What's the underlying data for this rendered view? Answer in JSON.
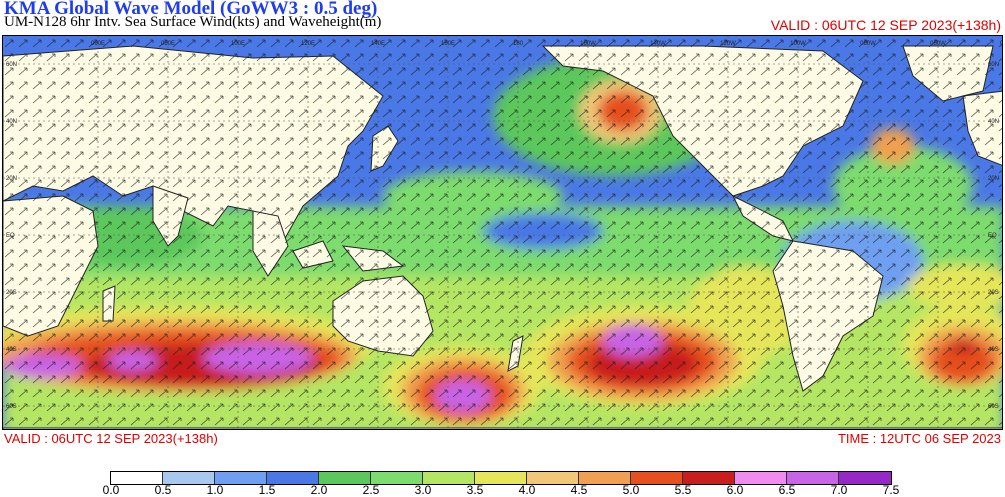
{
  "header": {
    "title": "KMA  Global Wave Model (GoWW3 : 0.5 deg)",
    "subtitle": "UM-N128  6hr Intv. Sea Surface Wind(kts) and Waveheight(m)",
    "valid_top": "VALID : 06UTC 12 SEP 2023(+138h)"
  },
  "footer": {
    "valid_bottom": "VALID : 06UTC 12 SEP 2023(+138h)",
    "time": "TIME : 12UTC 06 SEP 2023"
  },
  "map": {
    "land_color": "#fdfbe3",
    "lon_labels": [
      "060E",
      "080E",
      "100E",
      "120E",
      "140E",
      "160E",
      "180",
      "160W",
      "140W",
      "120W",
      "100W",
      "080W",
      "060W",
      "040W"
    ],
    "lat_labels": [
      "60N",
      "40N",
      "20N",
      "EQ",
      "20S",
      "40S",
      "60S"
    ]
  },
  "colorbar": {
    "labels": [
      "0.0",
      "0.5",
      "1.0",
      "1.5",
      "2.0",
      "2.5",
      "3.0",
      "3.5",
      "4.0",
      "4.5",
      "5.0",
      "5.5",
      "6.0",
      "6.5",
      "7.0",
      "7.5"
    ],
    "colors": [
      "#ffffff",
      "#a8c8f0",
      "#6e9ff0",
      "#4a78e6",
      "#5cc85c",
      "#7ddc6e",
      "#b4e664",
      "#e6e65a",
      "#f0c878",
      "#f0a050",
      "#e6501e",
      "#c81e1e",
      "#f08cf0",
      "#c864e6",
      "#9628c8"
    ]
  }
}
